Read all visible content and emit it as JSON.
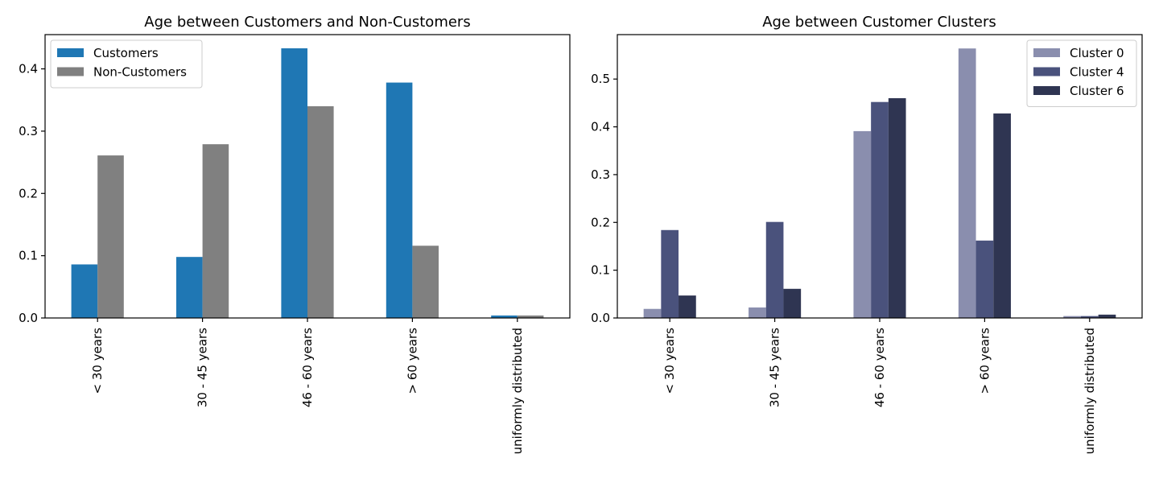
{
  "chart_data": [
    {
      "type": "bar",
      "title": "Age between Customers and Non-Customers",
      "xlabel": "",
      "ylabel": "",
      "categories": [
        "< 30 years",
        "30 - 45 years",
        "46 - 60 years",
        "> 60 years",
        "uniformly distributed"
      ],
      "series": [
        {
          "name": "Customers",
          "color": "#1f77b4",
          "values": [
            0.086,
            0.098,
            0.433,
            0.378,
            0.004
          ]
        },
        {
          "name": "Non-Customers",
          "color": "#808080",
          "values": [
            0.261,
            0.279,
            0.34,
            0.116,
            0.004
          ]
        }
      ],
      "ylim": [
        0,
        0.455
      ],
      "yticks": [
        0.0,
        0.1,
        0.2,
        0.3,
        0.4
      ],
      "ytick_labels": [
        "0.0",
        "0.1",
        "0.2",
        "0.3",
        "0.4"
      ],
      "legend_position": "upper left",
      "grid": false
    },
    {
      "type": "bar",
      "title": "Age between Customer Clusters",
      "xlabel": "",
      "ylabel": "",
      "categories": [
        "< 30 years",
        "30 - 45 years",
        "46 - 60 years",
        "> 60 years",
        "uniformly distributed"
      ],
      "series": [
        {
          "name": "Cluster 0",
          "color": "#8a8eae",
          "values": [
            0.019,
            0.022,
            0.391,
            0.564,
            0.004
          ]
        },
        {
          "name": "Cluster 4",
          "color": "#4a527c",
          "values": [
            0.184,
            0.201,
            0.452,
            0.162,
            0.004
          ]
        },
        {
          "name": "Cluster 6",
          "color": "#2f3552",
          "values": [
            0.047,
            0.061,
            0.46,
            0.428,
            0.007
          ]
        }
      ],
      "ylim": [
        0,
        0.593
      ],
      "yticks": [
        0.0,
        0.1,
        0.2,
        0.3,
        0.4,
        0.5
      ],
      "ytick_labels": [
        "0.0",
        "0.1",
        "0.2",
        "0.3",
        "0.4",
        "0.5"
      ],
      "legend_position": "upper right",
      "grid": false
    }
  ]
}
